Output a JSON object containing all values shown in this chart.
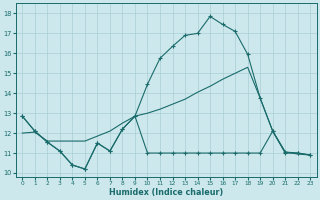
{
  "xlabel": "Humidex (Indice chaleur)",
  "bg_color": "#cce8ec",
  "grid_color": "#aacdd4",
  "line_color": "#1a6b6b",
  "xlim": [
    -0.5,
    23.5
  ],
  "ylim": [
    9.8,
    18.5
  ],
  "xticks": [
    0,
    1,
    2,
    3,
    4,
    5,
    6,
    7,
    8,
    9,
    10,
    11,
    12,
    13,
    14,
    15,
    16,
    17,
    18,
    19,
    20,
    21,
    22,
    23
  ],
  "yticks": [
    10,
    11,
    12,
    13,
    14,
    15,
    16,
    17,
    18
  ],
  "line1_x": [
    0,
    1,
    2,
    3,
    4,
    5,
    6,
    7,
    8,
    9,
    10,
    11,
    12,
    13,
    14,
    15,
    16,
    17,
    18,
    19,
    20,
    21,
    22,
    23
  ],
  "line1_y": [
    12.85,
    12.1,
    11.55,
    11.1,
    10.4,
    10.2,
    11.5,
    11.1,
    12.2,
    12.85,
    11.0,
    11.0,
    11.0,
    11.0,
    11.0,
    11.0,
    11.0,
    11.0,
    11.0,
    11.0,
    12.1,
    11.0,
    11.0,
    10.9
  ],
  "line2_x": [
    0,
    1,
    2,
    3,
    4,
    5,
    6,
    7,
    8,
    9,
    10,
    11,
    12,
    13,
    14,
    15,
    16,
    17,
    18,
    19,
    20,
    21,
    22,
    23
  ],
  "line2_y": [
    12.0,
    12.05,
    11.6,
    11.6,
    11.6,
    11.6,
    11.85,
    12.1,
    12.5,
    12.85,
    13.0,
    13.2,
    13.45,
    13.7,
    14.05,
    14.35,
    14.7,
    15.0,
    15.3,
    13.75,
    12.1,
    11.05,
    10.95,
    10.9
  ],
  "line3_x": [
    0,
    1,
    2,
    3,
    4,
    5,
    6,
    7,
    8,
    9,
    10,
    11,
    12,
    13,
    14,
    15,
    16,
    17,
    18,
    19,
    20,
    21,
    22,
    23
  ],
  "line3_y": [
    12.85,
    12.1,
    11.55,
    11.1,
    10.4,
    10.2,
    11.5,
    11.1,
    12.2,
    12.85,
    14.45,
    15.75,
    16.35,
    16.9,
    17.0,
    17.85,
    17.45,
    17.1,
    15.95,
    13.75,
    12.1,
    11.05,
    11.0,
    10.9
  ]
}
